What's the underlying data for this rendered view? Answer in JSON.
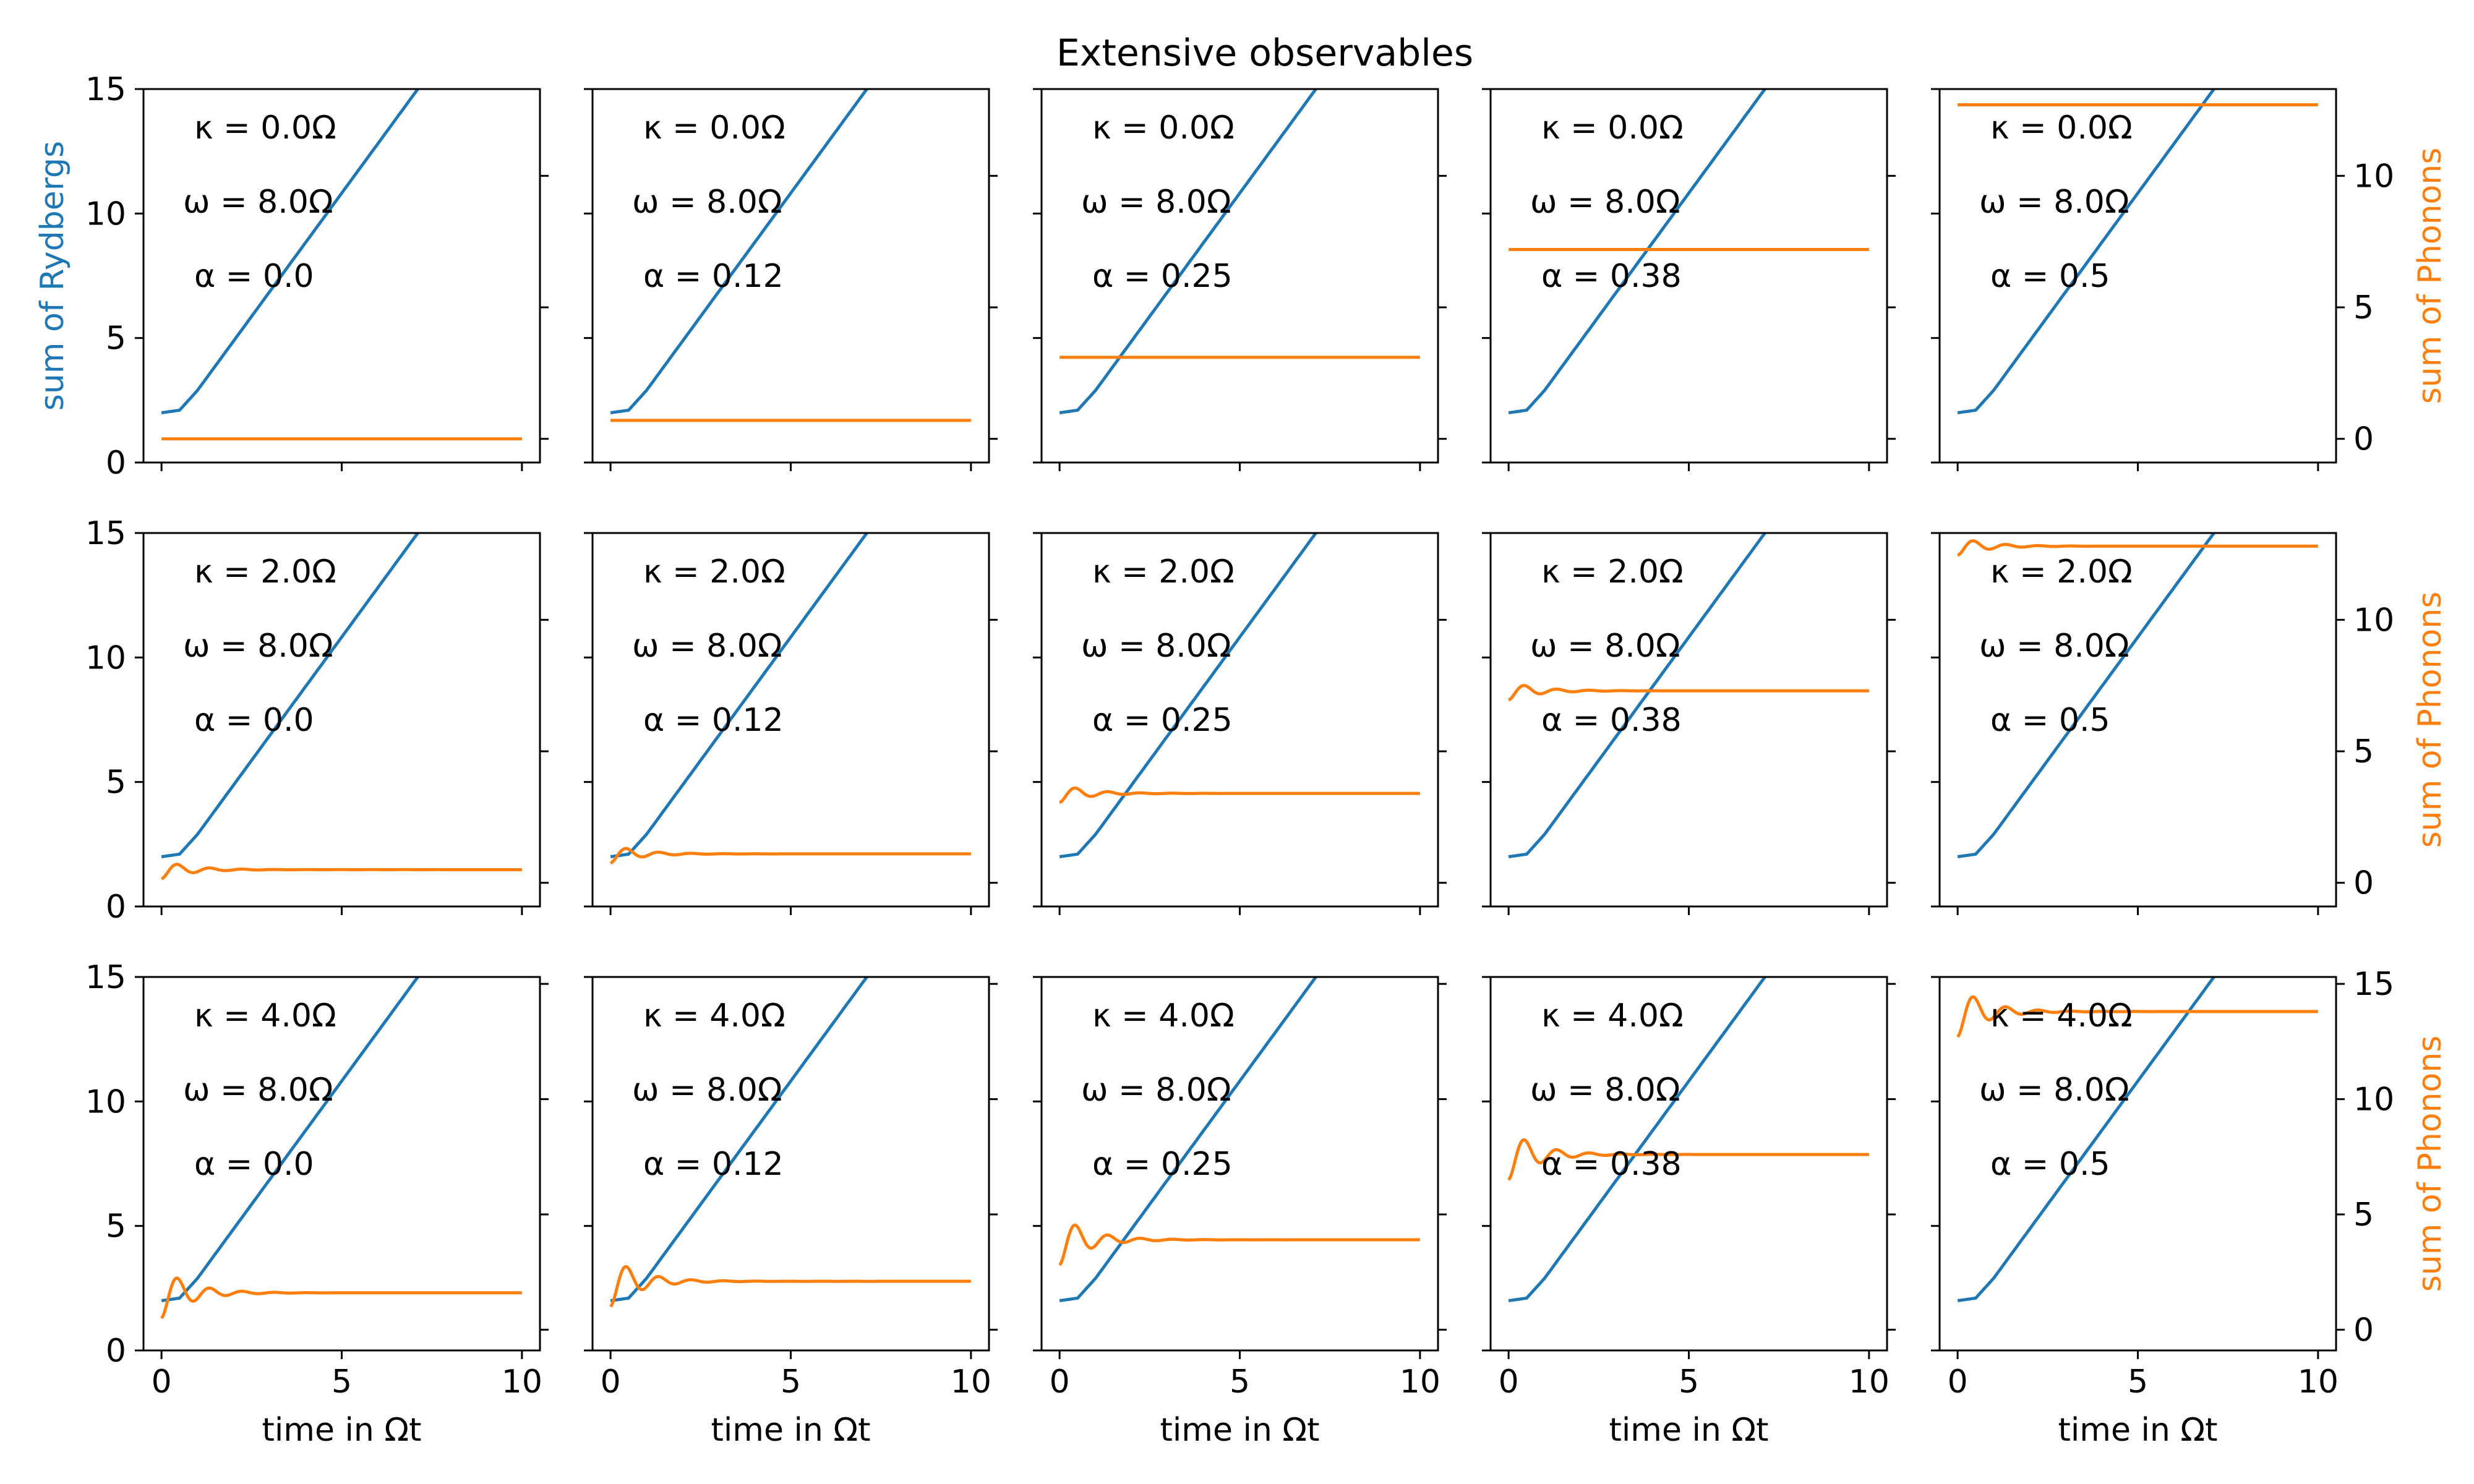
{
  "chart_data": {
    "type": "line",
    "title": "Extensive observables",
    "xlabel": "time in Ωt",
    "ylabel_left": "sum of Rydbergs",
    "ylabel_right": "sum of Phonons",
    "xlim": [
      -0.5,
      10.5
    ],
    "x_ticks": [
      "0",
      "5",
      "10"
    ],
    "ylim_left": [
      0,
      15
    ],
    "y_ticks_left": [
      "0",
      "5",
      "10",
      "15"
    ],
    "ylim_right": [
      -0.9,
      13.3
    ],
    "y_ticks_right": [
      "0",
      "5",
      "10"
    ],
    "y_ticks_right_last_row": [
      "0",
      "5",
      "10",
      "15"
    ],
    "ylim_right_last_row": [
      -0.9,
      15.3
    ],
    "colors": {
      "rydbergs": "#1f77b4",
      "phonons": "#ff7f0e"
    },
    "grid": false,
    "legend": "none",
    "kappa_labels": [
      "κ = 0.0Ω",
      "κ = 2.0Ω",
      "κ = 4.0Ω"
    ],
    "omega_label": "ω = 8.0Ω",
    "alpha_labels": [
      "α = 0.0",
      "α = 0.12",
      "α = 0.25",
      "α = 0.38",
      "α = 0.5"
    ],
    "kappa_values": [
      0.0,
      2.0,
      4.0
    ],
    "alpha_values": [
      0.0,
      0.12,
      0.25,
      0.38,
      0.5
    ],
    "series": [
      {
        "name": "sum of Rydbergs",
        "axis": "left",
        "shape": "flat at 2 until t≈0.5, then linear growth of about 2 per unit time",
        "x": [
          0,
          0.5,
          1,
          2,
          3,
          4,
          5,
          6,
          7,
          8,
          9
        ],
        "y": [
          2.0,
          2.1,
          2.9,
          4.8,
          6.8,
          8.8,
          10.8,
          12.8,
          14.8,
          16.8,
          18.8
        ]
      },
      {
        "name": "sum of Phonons",
        "axis": "right",
        "plateau_by_kappa_row_and_alpha": [
          [
            0.0,
            0.7,
            3.1,
            7.2,
            12.7
          ],
          [
            0.5,
            1.1,
            3.4,
            7.3,
            12.8
          ],
          [
            1.6,
            2.1,
            3.9,
            7.6,
            13.8
          ]
        ],
        "oscillation_amplitude_by_kappa_row": [
          0.0,
          0.35,
          1.1
        ]
      }
    ]
  }
}
